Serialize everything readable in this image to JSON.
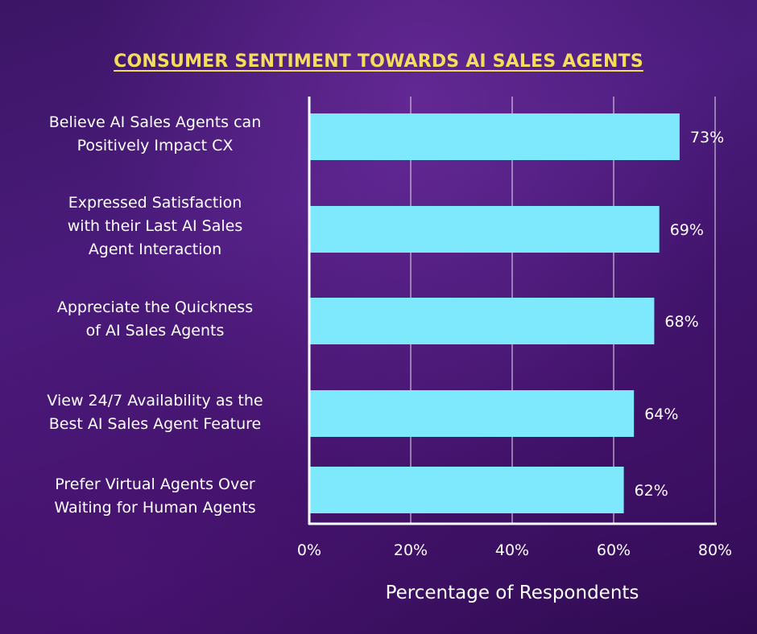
{
  "chart_data": {
    "type": "bar",
    "orientation": "horizontal",
    "title": "CONSUMER SENTIMENT TOWARDS AI SALES AGENTS",
    "xlabel": "Percentage of Respondents",
    "ylabel": "",
    "categories": [
      "Believe AI Sales Agents can\nPositively Impact CX",
      "Expressed Satisfaction\nwith their Last AI Sales\nAgent Interaction",
      "Appreciate the Quickness\nof AI Sales Agents",
      "View 24/7 Availability as the\nBest AI Sales Agent Feature",
      "Prefer Virtual Agents Over\nWaiting for Human Agents"
    ],
    "values": [
      73,
      69,
      68,
      64,
      62
    ],
    "value_labels": [
      "73%",
      "69%",
      "68%",
      "64%",
      "62%"
    ],
    "xlim": [
      0,
      80
    ],
    "xticks": [
      0,
      20,
      40,
      60,
      80
    ],
    "xtick_labels": [
      "0%",
      "20%",
      "40%",
      "60%",
      "80%"
    ],
    "grid": "vertical",
    "legend": "none",
    "colors": {
      "bar": "#7ee8fc",
      "title": "#f4dd5b",
      "text": "#ffffff",
      "axis": "#ffffff",
      "background": "#3f1769"
    }
  }
}
